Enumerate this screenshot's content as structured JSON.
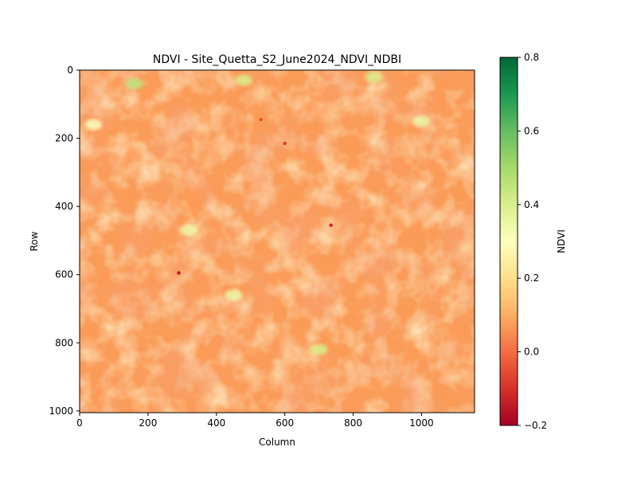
{
  "chart_data": {
    "type": "heatmap",
    "title": "NDVI - Site_Quetta_S2_June2024_NDVI_NDBI",
    "xlabel": "Column",
    "ylabel": "Row",
    "x_range": [
      0,
      1155
    ],
    "y_range": [
      0,
      1005
    ],
    "y_inverted": true,
    "x_ticks": [
      "0",
      "200",
      "400",
      "600",
      "800",
      "1000"
    ],
    "y_ticks": [
      "0",
      "200",
      "400",
      "600",
      "800",
      "1000"
    ],
    "colorbar": {
      "label": "NDVI",
      "colormap": "RdYlGn",
      "vmin": -0.2,
      "vmax": 0.8,
      "ticks": [
        "−0.2",
        "0.0",
        "0.2",
        "0.4",
        "0.6",
        "0.8"
      ]
    },
    "grid": false,
    "typical_value": 0.07,
    "vegetation_patches": [
      {
        "col": 160,
        "row": 40,
        "ndvi": 0.45
      },
      {
        "col": 480,
        "row": 30,
        "ndvi": 0.4
      },
      {
        "col": 320,
        "row": 470,
        "ndvi": 0.35
      },
      {
        "col": 700,
        "row": 820,
        "ndvi": 0.4
      },
      {
        "col": 450,
        "row": 660,
        "ndvi": 0.35
      },
      {
        "col": 860,
        "row": 20,
        "ndvi": 0.4
      },
      {
        "col": 1000,
        "row": 150,
        "ndvi": 0.35
      },
      {
        "col": 40,
        "row": 160,
        "ndvi": 0.3
      }
    ],
    "low_spots": [
      {
        "col": 290,
        "row": 595,
        "ndvi": -0.15
      },
      {
        "col": 735,
        "row": 455,
        "ndvi": -0.12
      },
      {
        "col": 600,
        "row": 215,
        "ndvi": -0.08
      },
      {
        "col": 530,
        "row": 145,
        "ndvi": -0.05
      }
    ]
  }
}
